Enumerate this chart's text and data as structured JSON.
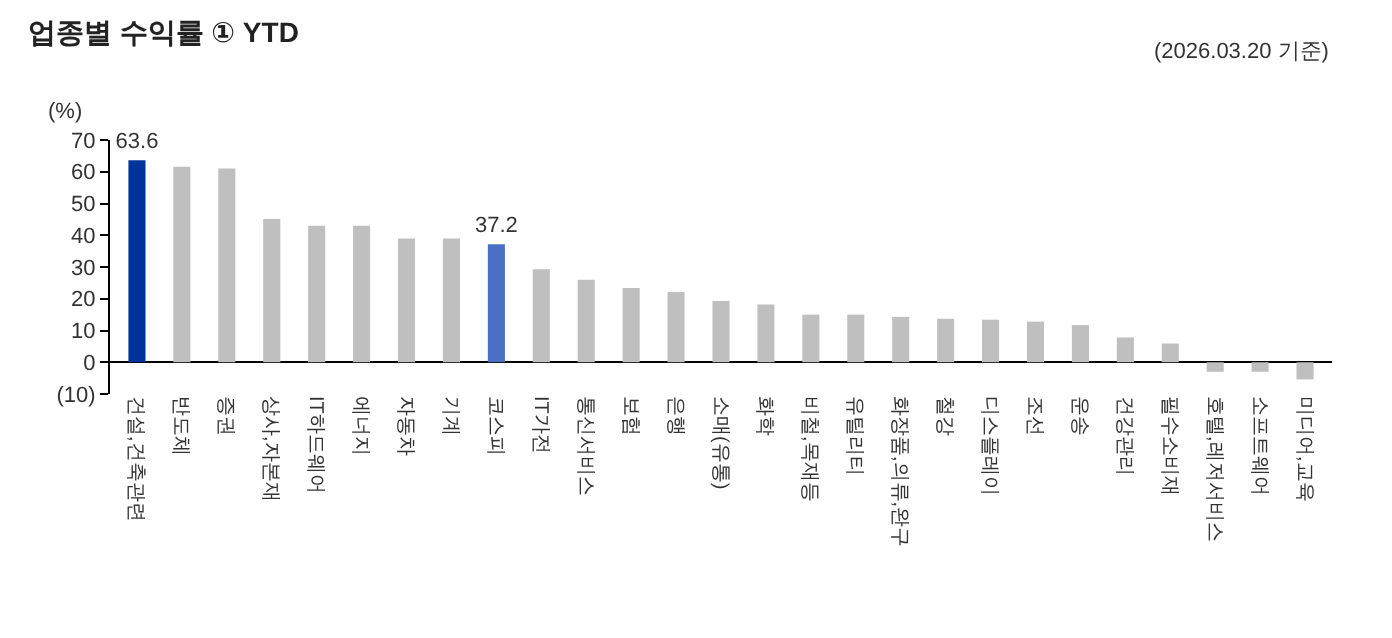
{
  "chart_data": {
    "type": "bar",
    "title": "업종별 수익률 ① YTD",
    "subtitle": "(2026.03.20 기준)",
    "ylabel": "(%)",
    "categories": [
      "건설,건축관련",
      "반도체",
      "증권",
      "상사,자본재",
      "IT하드웨어",
      "에너지",
      "자동차",
      "기계",
      "코스피",
      "IT가전",
      "통신서비스",
      "보험",
      "은행",
      "소매(유통)",
      "화학",
      "비철,목재등",
      "유틸리티",
      "화장품,의류,완구",
      "철강",
      "디스플레이",
      "조선",
      "운송",
      "건강관리",
      "필수소비재",
      "호텔,레저서비스",
      "소프트웨어",
      "미디어,교육"
    ],
    "values": [
      63.6,
      61.6,
      61.0,
      45.1,
      43.0,
      43.0,
      39.0,
      39.0,
      37.2,
      29.3,
      26.0,
      23.4,
      22.1,
      19.3,
      18.2,
      15.0,
      15.0,
      14.3,
      13.7,
      13.4,
      12.8,
      11.7,
      7.8,
      5.9,
      -3.0,
      -3.0,
      -5.4
    ],
    "colors": [
      "#003399",
      "#bfbfbf",
      "#bfbfbf",
      "#bfbfbf",
      "#bfbfbf",
      "#bfbfbf",
      "#bfbfbf",
      "#bfbfbf",
      "#4a6fc4",
      "#bfbfbf",
      "#bfbfbf",
      "#bfbfbf",
      "#bfbfbf",
      "#bfbfbf",
      "#bfbfbf",
      "#bfbfbf",
      "#bfbfbf",
      "#bfbfbf",
      "#bfbfbf",
      "#bfbfbf",
      "#bfbfbf",
      "#bfbfbf",
      "#bfbfbf",
      "#bfbfbf",
      "#bfbfbf",
      "#bfbfbf",
      "#bfbfbf"
    ],
    "value_labels": [
      "63.6",
      null,
      null,
      null,
      null,
      null,
      null,
      null,
      "37.2",
      null,
      null,
      null,
      null,
      null,
      null,
      null,
      null,
      null,
      null,
      null,
      null,
      null,
      null,
      null,
      null,
      null,
      null
    ],
    "ylim": [
      -10,
      70
    ],
    "yticks": [
      {
        "value": -10,
        "label": "(10)"
      },
      0,
      10,
      20,
      30,
      40,
      50,
      60,
      70
    ],
    "grid": false,
    "legend": false
  }
}
